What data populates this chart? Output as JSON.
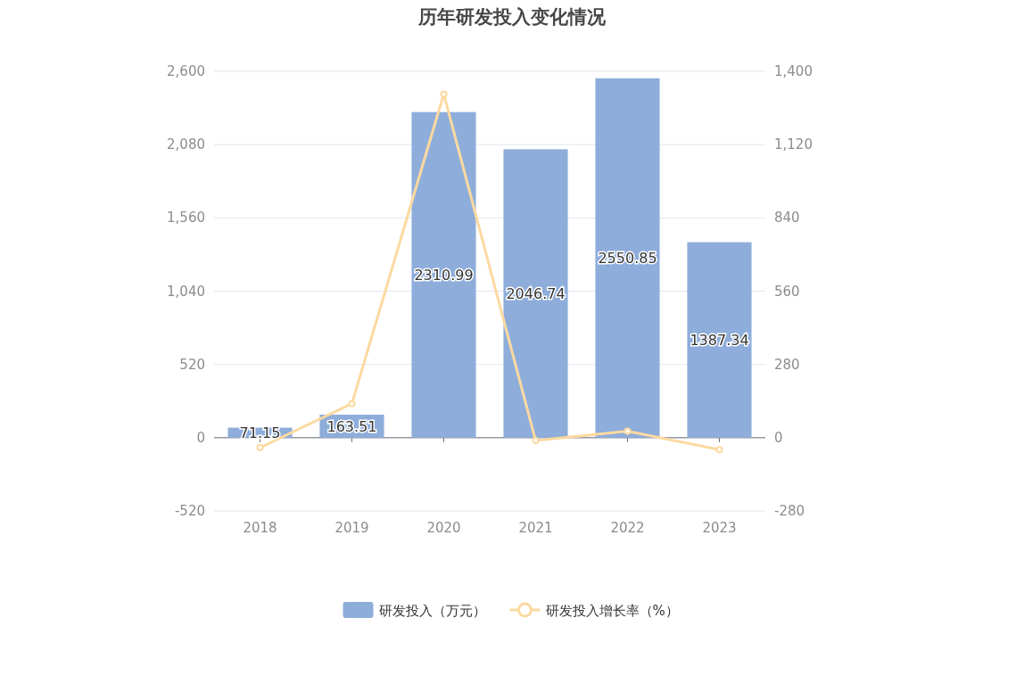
{
  "chart_data": {
    "type": "bar",
    "title": "历年研发投入变化情况",
    "categories": [
      "2018",
      "2019",
      "2020",
      "2021",
      "2022",
      "2023"
    ],
    "series": [
      {
        "name": "研发投入（万元）",
        "color": "#8eaddb",
        "values": [
          71.15,
          163.51,
          2310.99,
          2046.74,
          2550.85,
          1387.34
        ],
        "data_labels": true
      },
      {
        "name": "研发投入增长率（%）",
        "type": "line",
        "axis": "y2",
        "color": "#fcd9a0",
        "marker": "circle",
        "values": [
          -38,
          130,
          1313,
          -11,
          25,
          -46
        ]
      }
    ],
    "ylim": [
      -520,
      2600
    ],
    "yticks": [
      -520,
      0,
      520,
      {
        "value": 1040,
        "label": "1,040"
      },
      {
        "value": 1560,
        "label": "1,560"
      },
      {
        "value": 2080,
        "label": "2,080"
      },
      {
        "value": 2600,
        "label": "2,600"
      }
    ],
    "y2lim": [
      -280,
      1400
    ],
    "y2ticks": [
      -280,
      0,
      280,
      560,
      840,
      {
        "value": 1120,
        "label": "1,120"
      },
      {
        "value": 1400,
        "label": "1,400"
      }
    ],
    "grid": "y",
    "legend": "bottom"
  }
}
